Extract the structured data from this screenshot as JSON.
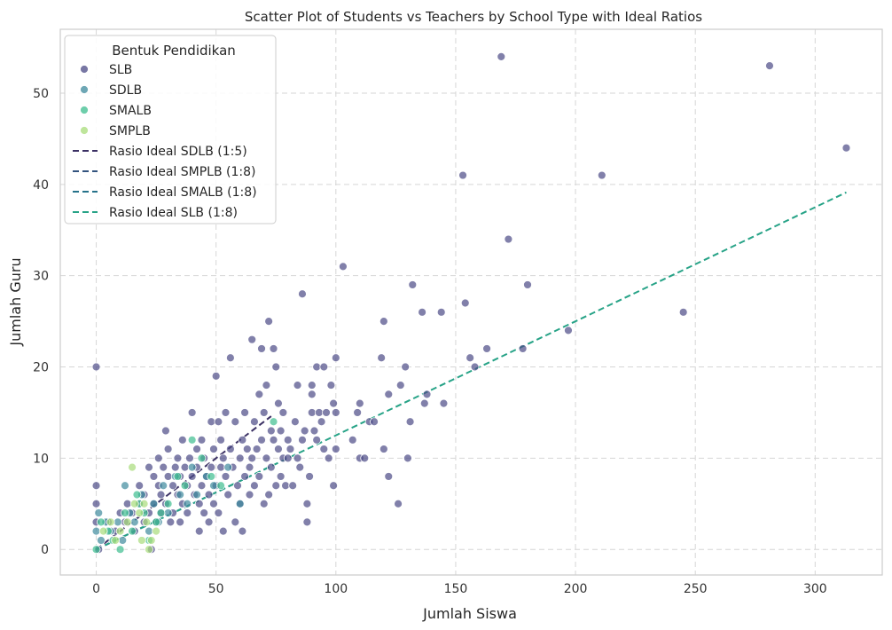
{
  "chart_data": {
    "type": "scatter",
    "title": "Scatter Plot of Students vs Teachers by School Type with Ideal Ratios",
    "xlabel": "Jumlah Siswa",
    "ylabel": "Jumlah Guru",
    "xlim": [
      -15,
      328
    ],
    "ylim": [
      -2.8,
      57
    ],
    "xticks": [
      0,
      50,
      100,
      150,
      200,
      250,
      300
    ],
    "yticks": [
      0,
      10,
      20,
      30,
      40,
      50
    ],
    "grid": true,
    "legend": {
      "title": "Bentuk Pendidikan",
      "placement": "top-left"
    },
    "series": [
      {
        "name": "SLB",
        "color": "#4b4a86",
        "points": [
          [
            0,
            20
          ],
          [
            0,
            7
          ],
          [
            0,
            5
          ],
          [
            0,
            3
          ],
          [
            1,
            0
          ],
          [
            5,
            3
          ],
          [
            8,
            2
          ],
          [
            10,
            4
          ],
          [
            12,
            3
          ],
          [
            13,
            5
          ],
          [
            15,
            4
          ],
          [
            16,
            2
          ],
          [
            18,
            5
          ],
          [
            18,
            7
          ],
          [
            20,
            6
          ],
          [
            20,
            3
          ],
          [
            22,
            9
          ],
          [
            22,
            4
          ],
          [
            23,
            0
          ],
          [
            24,
            8
          ],
          [
            24,
            5
          ],
          [
            25,
            3
          ],
          [
            26,
            10
          ],
          [
            26,
            7
          ],
          [
            27,
            6
          ],
          [
            27,
            4
          ],
          [
            28,
            9
          ],
          [
            29,
            13
          ],
          [
            29,
            5
          ],
          [
            30,
            11
          ],
          [
            30,
            8
          ],
          [
            31,
            3
          ],
          [
            32,
            7
          ],
          [
            32,
            4
          ],
          [
            33,
            9
          ],
          [
            34,
            10
          ],
          [
            34,
            6
          ],
          [
            35,
            8
          ],
          [
            35,
            3
          ],
          [
            36,
            5
          ],
          [
            36,
            12
          ],
          [
            37,
            9
          ],
          [
            38,
            7
          ],
          [
            38,
            4
          ],
          [
            39,
            10
          ],
          [
            40,
            8
          ],
          [
            40,
            15
          ],
          [
            41,
            6
          ],
          [
            42,
            11
          ],
          [
            42,
            9
          ],
          [
            43,
            5
          ],
          [
            43,
            2
          ],
          [
            44,
            12
          ],
          [
            44,
            7
          ],
          [
            45,
            10
          ],
          [
            45,
            4
          ],
          [
            46,
            8
          ],
          [
            47,
            6
          ],
          [
            47,
            3
          ],
          [
            48,
            9
          ],
          [
            48,
            14
          ],
          [
            49,
            11
          ],
          [
            49,
            5
          ],
          [
            50,
            19
          ],
          [
            50,
            7
          ],
          [
            51,
            14
          ],
          [
            51,
            4
          ],
          [
            52,
            12
          ],
          [
            52,
            9
          ],
          [
            53,
            2
          ],
          [
            53,
            10
          ],
          [
            54,
            8
          ],
          [
            54,
            15
          ],
          [
            55,
            6
          ],
          [
            56,
            21
          ],
          [
            56,
            11
          ],
          [
            57,
            9
          ],
          [
            58,
            3
          ],
          [
            58,
            14
          ],
          [
            59,
            7
          ],
          [
            60,
            5
          ],
          [
            60,
            10
          ],
          [
            61,
            12
          ],
          [
            61,
            2
          ],
          [
            62,
            15
          ],
          [
            62,
            8
          ],
          [
            63,
            11
          ],
          [
            64,
            6
          ],
          [
            64,
            9
          ],
          [
            65,
            23
          ],
          [
            65,
            10
          ],
          [
            66,
            7
          ],
          [
            66,
            14
          ],
          [
            67,
            11
          ],
          [
            68,
            17
          ],
          [
            68,
            8
          ],
          [
            69,
            22
          ],
          [
            69,
            12
          ],
          [
            70,
            15
          ],
          [
            70,
            5
          ],
          [
            71,
            10
          ],
          [
            71,
            18
          ],
          [
            72,
            25
          ],
          [
            72,
            6
          ],
          [
            73,
            13
          ],
          [
            73,
            9
          ],
          [
            74,
            22
          ],
          [
            74,
            12
          ],
          [
            75,
            20
          ],
          [
            75,
            7
          ],
          [
            76,
            16
          ],
          [
            76,
            11
          ],
          [
            77,
            13
          ],
          [
            77,
            8
          ],
          [
            78,
            10
          ],
          [
            78,
            15
          ],
          [
            79,
            7
          ],
          [
            80,
            12
          ],
          [
            80,
            10
          ],
          [
            81,
            11
          ],
          [
            82,
            7
          ],
          [
            83,
            14
          ],
          [
            84,
            18
          ],
          [
            84,
            10
          ],
          [
            85,
            9
          ],
          [
            86,
            28
          ],
          [
            86,
            12
          ],
          [
            87,
            13
          ],
          [
            88,
            5
          ],
          [
            88,
            3
          ],
          [
            89,
            8
          ],
          [
            90,
            18
          ],
          [
            90,
            15
          ],
          [
            90,
            17
          ],
          [
            91,
            13
          ],
          [
            92,
            20
          ],
          [
            92,
            12
          ],
          [
            93,
            15
          ],
          [
            94,
            14
          ],
          [
            95,
            20
          ],
          [
            95,
            11
          ],
          [
            96,
            15
          ],
          [
            97,
            10
          ],
          [
            98,
            18
          ],
          [
            99,
            7
          ],
          [
            99,
            16
          ],
          [
            100,
            21
          ],
          [
            100,
            11
          ],
          [
            100,
            15
          ],
          [
            103,
            31
          ],
          [
            107,
            12
          ],
          [
            109,
            15
          ],
          [
            110,
            16
          ],
          [
            110,
            10
          ],
          [
            112,
            10
          ],
          [
            114,
            14
          ],
          [
            116,
            14
          ],
          [
            119,
            21
          ],
          [
            120,
            25
          ],
          [
            120,
            11
          ],
          [
            122,
            17
          ],
          [
            122,
            8
          ],
          [
            126,
            5
          ],
          [
            127,
            18
          ],
          [
            129,
            20
          ],
          [
            130,
            10
          ],
          [
            131,
            14
          ],
          [
            132,
            29
          ],
          [
            136,
            26
          ],
          [
            137,
            16
          ],
          [
            138,
            17
          ],
          [
            144,
            26
          ],
          [
            145,
            16
          ],
          [
            153,
            41
          ],
          [
            154,
            27
          ],
          [
            156,
            21
          ],
          [
            158,
            20
          ],
          [
            163,
            22
          ],
          [
            169,
            54
          ],
          [
            172,
            34
          ],
          [
            178,
            22
          ],
          [
            180,
            29
          ],
          [
            197,
            24
          ],
          [
            211,
            41
          ],
          [
            245,
            26
          ],
          [
            281,
            53
          ],
          [
            313,
            44
          ]
        ]
      },
      {
        "name": "SDLB",
        "color": "#3e8a9c",
        "points": [
          [
            0,
            2
          ],
          [
            1,
            4
          ],
          [
            2,
            1
          ],
          [
            4,
            3
          ],
          [
            6,
            2
          ],
          [
            9,
            3
          ],
          [
            11,
            1
          ],
          [
            12,
            7
          ],
          [
            14,
            4
          ],
          [
            16,
            3
          ],
          [
            19,
            6
          ],
          [
            22,
            2
          ],
          [
            24,
            5
          ],
          [
            26,
            3
          ],
          [
            28,
            7
          ],
          [
            30,
            4
          ],
          [
            33,
            8
          ],
          [
            35,
            6
          ],
          [
            38,
            5
          ],
          [
            40,
            9
          ],
          [
            42,
            6
          ],
          [
            46,
            8
          ],
          [
            49,
            7
          ],
          [
            55,
            9
          ],
          [
            60,
            5
          ]
        ]
      },
      {
        "name": "SMALB",
        "color": "#3dbd8f",
        "points": [
          [
            0,
            0
          ],
          [
            2,
            3
          ],
          [
            5,
            2
          ],
          [
            7,
            1
          ],
          [
            10,
            0
          ],
          [
            12,
            4
          ],
          [
            15,
            2
          ],
          [
            17,
            6
          ],
          [
            18,
            5
          ],
          [
            20,
            4
          ],
          [
            22,
            1
          ],
          [
            25,
            3
          ],
          [
            27,
            4
          ],
          [
            30,
            5
          ],
          [
            34,
            8
          ],
          [
            37,
            7
          ],
          [
            40,
            12
          ],
          [
            44,
            10
          ],
          [
            48,
            8
          ],
          [
            52,
            7
          ],
          [
            74,
            14
          ]
        ]
      },
      {
        "name": "SMPLB",
        "color": "#a8dc7a",
        "points": [
          [
            3,
            2
          ],
          [
            6,
            3
          ],
          [
            8,
            1
          ],
          [
            10,
            2
          ],
          [
            13,
            3
          ],
          [
            15,
            9
          ],
          [
            16,
            5
          ],
          [
            18,
            4
          ],
          [
            19,
            1
          ],
          [
            20,
            5
          ],
          [
            21,
            3
          ],
          [
            22,
            0
          ],
          [
            23,
            1
          ],
          [
            25,
            2
          ]
        ]
      }
    ],
    "lines": [
      {
        "name": "Rasio Ideal SDLB (1:5)",
        "color": "#3b3064",
        "x": [
          0,
          73
        ],
        "y": [
          0,
          14.6
        ]
      },
      {
        "name": "Rasio Ideal SMPLB (1:8)",
        "color": "#33537e",
        "x": [
          0,
          25
        ],
        "y": [
          0,
          3.125
        ]
      },
      {
        "name": "Rasio Ideal SMALB (1:8)",
        "color": "#26728a",
        "x": [
          0,
          74
        ],
        "y": [
          0,
          9.25
        ]
      },
      {
        "name": "Rasio Ideal SLB (1:8)",
        "color": "#27a387",
        "x": [
          0,
          313
        ],
        "y": [
          0,
          39.125
        ]
      }
    ]
  }
}
